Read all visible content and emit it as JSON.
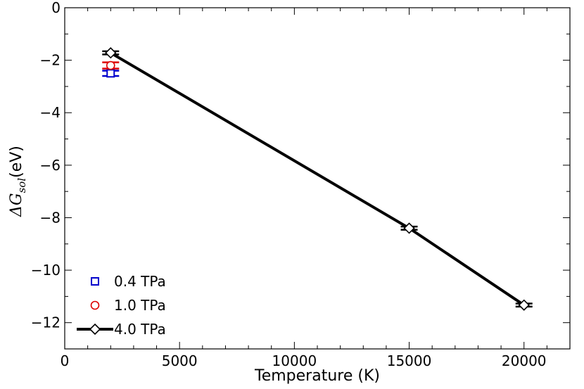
{
  "chart_data": {
    "type": "scatter",
    "xlabel": "Temperature (K)",
    "ylabel": {
      "prefix": "ΔG",
      "subscript": "sol",
      "unit": "(eV)"
    },
    "xlim": [
      0,
      22000
    ],
    "ylim": [
      -13,
      0
    ],
    "xticks": [
      0,
      5000,
      10000,
      15000,
      20000
    ],
    "xtick_labels": [
      "0",
      "5000",
      "10000",
      "15000",
      "20000"
    ],
    "yticks": [
      0,
      -2,
      -4,
      -6,
      -8,
      -10,
      -12
    ],
    "ytick_labels": [
      "0",
      "−2",
      "−4",
      "−6",
      "−8",
      "−10",
      "−12"
    ],
    "grid": false,
    "legend_position": "bottom-left",
    "series": [
      {
        "name": "0.4 TPa",
        "marker": "square",
        "color": "#0000cc",
        "line": false,
        "points": [
          {
            "x": 2000,
            "y": -2.5,
            "err": 0.1
          }
        ]
      },
      {
        "name": "1.0 TPa",
        "marker": "circle",
        "color": "#dd0000",
        "line": false,
        "points": [
          {
            "x": 2000,
            "y": -2.2,
            "err": 0.12
          }
        ]
      },
      {
        "name": "4.0 TPa",
        "marker": "diamond",
        "color": "#000000",
        "line": true,
        "points": [
          {
            "x": 2000,
            "y": -1.72,
            "err": 0.06
          },
          {
            "x": 15000,
            "y": -8.4,
            "err": 0.06
          },
          {
            "x": 20000,
            "y": -11.33,
            "err": 0.06
          }
        ]
      }
    ]
  }
}
